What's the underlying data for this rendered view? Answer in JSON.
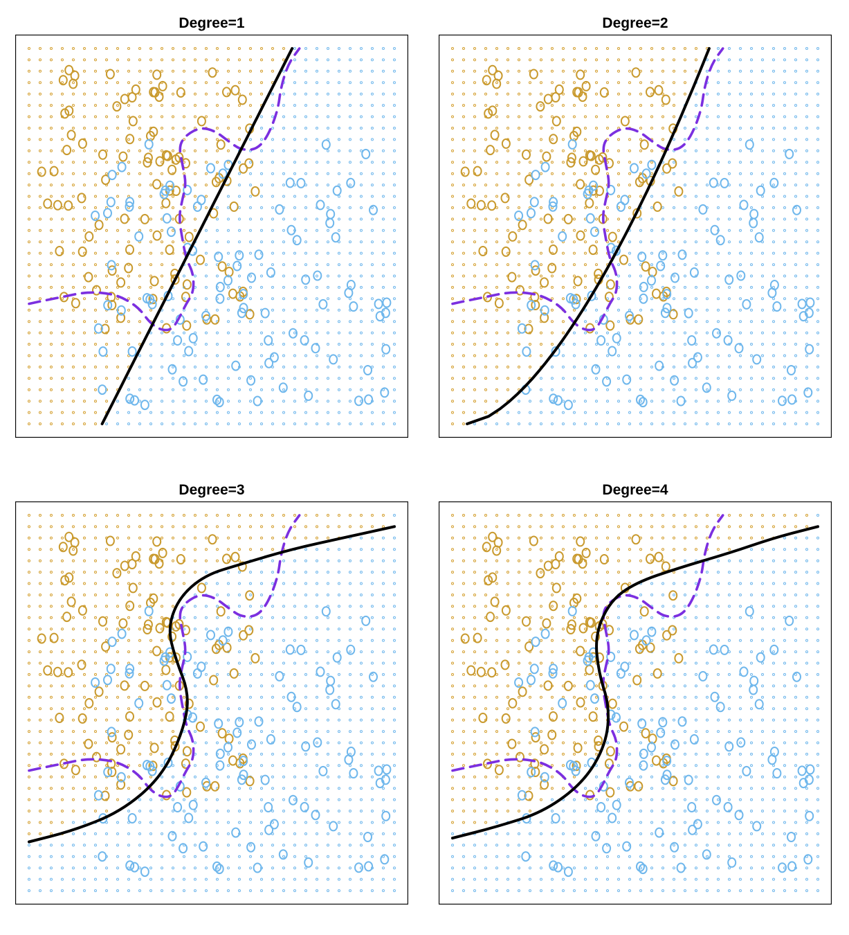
{
  "chart_data": [
    {
      "type": "scatter",
      "title": "Degree=1",
      "xlim": [
        0,
        1
      ],
      "ylim": [
        0,
        1
      ],
      "grid_points": {
        "rows": 34,
        "cols": 34,
        "region_colors": [
          "#d4a030",
          "#6fb7ec"
        ]
      },
      "classes": [
        {
          "name": "orange",
          "color": "#c99a2e",
          "count": 100
        },
        {
          "name": "blue",
          "color": "#6fb7ec",
          "count": 100
        }
      ],
      "svm_boundary": {
        "degree": 1,
        "style": "solid",
        "color": "#000000"
      },
      "bayes_boundary": {
        "style": "dashed",
        "color": "#7b2fe0"
      }
    },
    {
      "type": "scatter",
      "title": "Degree=2",
      "xlim": [
        0,
        1
      ],
      "ylim": [
        0,
        1
      ],
      "grid_points": {
        "rows": 34,
        "cols": 34,
        "region_colors": [
          "#d4a030",
          "#6fb7ec"
        ]
      },
      "classes": [
        {
          "name": "orange",
          "color": "#c99a2e",
          "count": 100
        },
        {
          "name": "blue",
          "color": "#6fb7ec",
          "count": 100
        }
      ],
      "svm_boundary": {
        "degree": 2,
        "style": "solid",
        "color": "#000000"
      },
      "bayes_boundary": {
        "style": "dashed",
        "color": "#7b2fe0"
      }
    },
    {
      "type": "scatter",
      "title": "Degree=3",
      "xlim": [
        0,
        1
      ],
      "ylim": [
        0,
        1
      ],
      "grid_points": {
        "rows": 34,
        "cols": 34,
        "region_colors": [
          "#d4a030",
          "#6fb7ec"
        ]
      },
      "classes": [
        {
          "name": "orange",
          "color": "#c99a2e",
          "count": 100
        },
        {
          "name": "blue",
          "color": "#6fb7ec",
          "count": 100
        }
      ],
      "svm_boundary": {
        "degree": 3,
        "style": "solid",
        "color": "#000000"
      },
      "bayes_boundary": {
        "style": "dashed",
        "color": "#7b2fe0"
      }
    },
    {
      "type": "scatter",
      "title": "Degree=4",
      "xlim": [
        0,
        1
      ],
      "ylim": [
        0,
        1
      ],
      "grid_points": {
        "rows": 34,
        "cols": 34,
        "region_colors": [
          "#d4a030",
          "#6fb7ec"
        ]
      },
      "classes": [
        {
          "name": "orange",
          "color": "#c99a2e",
          "count": 100
        },
        {
          "name": "blue",
          "color": "#6fb7ec",
          "count": 100
        }
      ],
      "svm_boundary": {
        "degree": 4,
        "style": "solid",
        "color": "#000000"
      },
      "bayes_boundary": {
        "style": "dashed",
        "color": "#7b2fe0"
      }
    }
  ]
}
